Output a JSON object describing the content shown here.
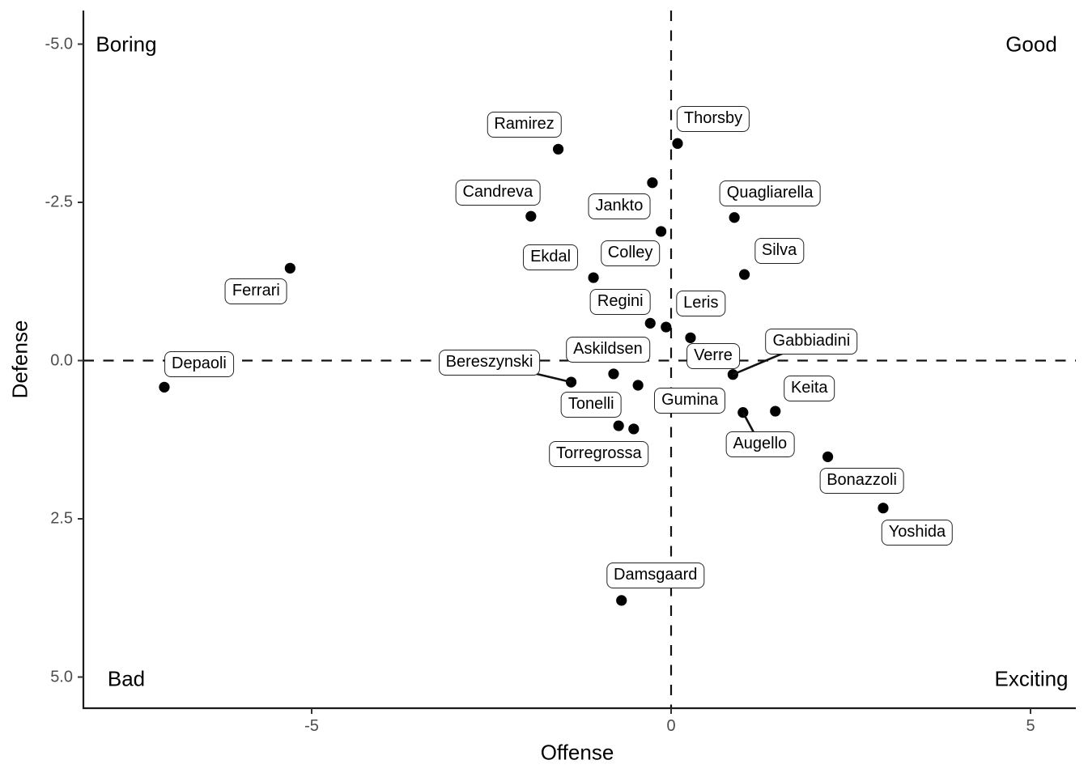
{
  "chart_data": {
    "type": "scatter",
    "title": "",
    "xlabel": "Offense",
    "ylabel": "Defense",
    "y_axis_reversed": true,
    "grid": false,
    "legend": "none",
    "xlim": [
      -8.2,
      5.6
    ],
    "ylim": [
      -5.5,
      5.5
    ],
    "x_ticks": [
      {
        "value": -5,
        "label": "-5"
      },
      {
        "value": 0,
        "label": "0"
      },
      {
        "value": 5,
        "label": "5"
      }
    ],
    "y_ticks": [
      {
        "value": -5,
        "label": "-5.0"
      },
      {
        "value": -2.5,
        "label": "-2.5"
      },
      {
        "value": 0,
        "label": "0.0"
      },
      {
        "value": 2.5,
        "label": "2.5"
      },
      {
        "value": 5,
        "label": "5.0"
      }
    ],
    "reference_lines": {
      "vertical_x": 0,
      "horizontal_y": 0,
      "style": "dashed"
    },
    "quadrants": {
      "top_left": "Boring",
      "top_right": "Good",
      "bottom_left": "Bad",
      "bottom_right": "Exciting"
    },
    "points": [
      {
        "name": "Depaoli",
        "offense": -7.05,
        "defense": 0.42,
        "label_offset": [
          43,
          -28
        ],
        "segment": false
      },
      {
        "name": "Ferrari",
        "offense": -5.3,
        "defense": -1.46,
        "label_offset": [
          -42,
          29
        ],
        "segment": false
      },
      {
        "name": "Ramirez",
        "offense": -1.57,
        "defense": -3.34,
        "label_offset": [
          -42,
          -30
        ],
        "segment": false
      },
      {
        "name": "Thorsby",
        "offense": 0.09,
        "defense": -3.43,
        "label_offset": [
          44,
          -30
        ],
        "segment": false
      },
      {
        "name": "Candreva",
        "offense": -1.95,
        "defense": -2.28,
        "label_offset": [
          -41,
          -29
        ],
        "segment": false
      },
      {
        "name": "Jankto",
        "offense": -0.26,
        "defense": -2.81,
        "label_offset": [
          -41,
          29
        ],
        "segment": false
      },
      {
        "name": "Quagliarella",
        "offense": 0.88,
        "defense": -2.26,
        "label_offset": [
          44,
          -30
        ],
        "segment": false
      },
      {
        "name": "Colley",
        "offense": -0.14,
        "defense": -2.04,
        "label_offset": [
          -38,
          27
        ],
        "segment": false
      },
      {
        "name": "Ekdal",
        "offense": -1.08,
        "defense": -1.31,
        "label_offset": [
          -53,
          -25
        ],
        "segment": false
      },
      {
        "name": "Silva",
        "offense": 1.02,
        "defense": -1.36,
        "label_offset": [
          43,
          -29
        ],
        "segment": false
      },
      {
        "name": "Regini",
        "offense": -0.29,
        "defense": -0.59,
        "label_offset": [
          -37,
          -26
        ],
        "segment": false
      },
      {
        "name": "Leris",
        "offense": -0.07,
        "defense": -0.53,
        "label_offset": [
          43,
          -29
        ],
        "segment": false
      },
      {
        "name": "Verre",
        "offense": 0.27,
        "defense": -0.36,
        "label_offset": [
          28,
          23
        ],
        "segment": false
      },
      {
        "name": "Askildsen",
        "offense": -0.8,
        "defense": 0.21,
        "label_offset": [
          -7,
          -30
        ],
        "segment": false
      },
      {
        "name": "Bereszynski",
        "offense": -1.39,
        "defense": 0.34,
        "label_offset": [
          -101,
          -24
        ],
        "segment": true
      },
      {
        "name": "Gabbiadini",
        "offense": 0.86,
        "defense": 0.22,
        "label_offset": [
          97,
          -41
        ],
        "segment": true
      },
      {
        "name": "Gumina",
        "offense": -0.46,
        "defense": 0.39,
        "label_offset": [
          64,
          19
        ],
        "segment": false
      },
      {
        "name": "Tonelli",
        "offense": -0.73,
        "defense": 1.03,
        "label_offset": [
          -34,
          -26
        ],
        "segment": false
      },
      {
        "name": "Torregrossa",
        "offense": -0.52,
        "defense": 1.08,
        "label_offset": [
          -43,
          31
        ],
        "segment": false
      },
      {
        "name": "Augello",
        "offense": 1.0,
        "defense": 0.82,
        "label_offset": [
          21,
          39
        ],
        "segment": true
      },
      {
        "name": "Keita",
        "offense": 1.45,
        "defense": 0.8,
        "label_offset": [
          42,
          -28
        ],
        "segment": false
      },
      {
        "name": "Bonazzoli",
        "offense": 2.18,
        "defense": 1.52,
        "label_offset": [
          42,
          30
        ],
        "segment": false
      },
      {
        "name": "Yoshida",
        "offense": 2.95,
        "defense": 2.33,
        "label_offset": [
          42,
          30
        ],
        "segment": false
      },
      {
        "name": "Damsgaard",
        "offense": -0.69,
        "defense": 3.79,
        "label_offset": [
          42,
          -31
        ],
        "segment": false
      }
    ]
  },
  "colors": {
    "background": "#ffffff",
    "point": "#000000",
    "axis_line": "#1a1a1a",
    "tick_mark": "#333333",
    "tick_text": "#4d4d4d",
    "reference_line": "#111111",
    "segment": "#111111",
    "label_border": "#222222",
    "label_fill": "#ffffff",
    "text": "#000000"
  }
}
